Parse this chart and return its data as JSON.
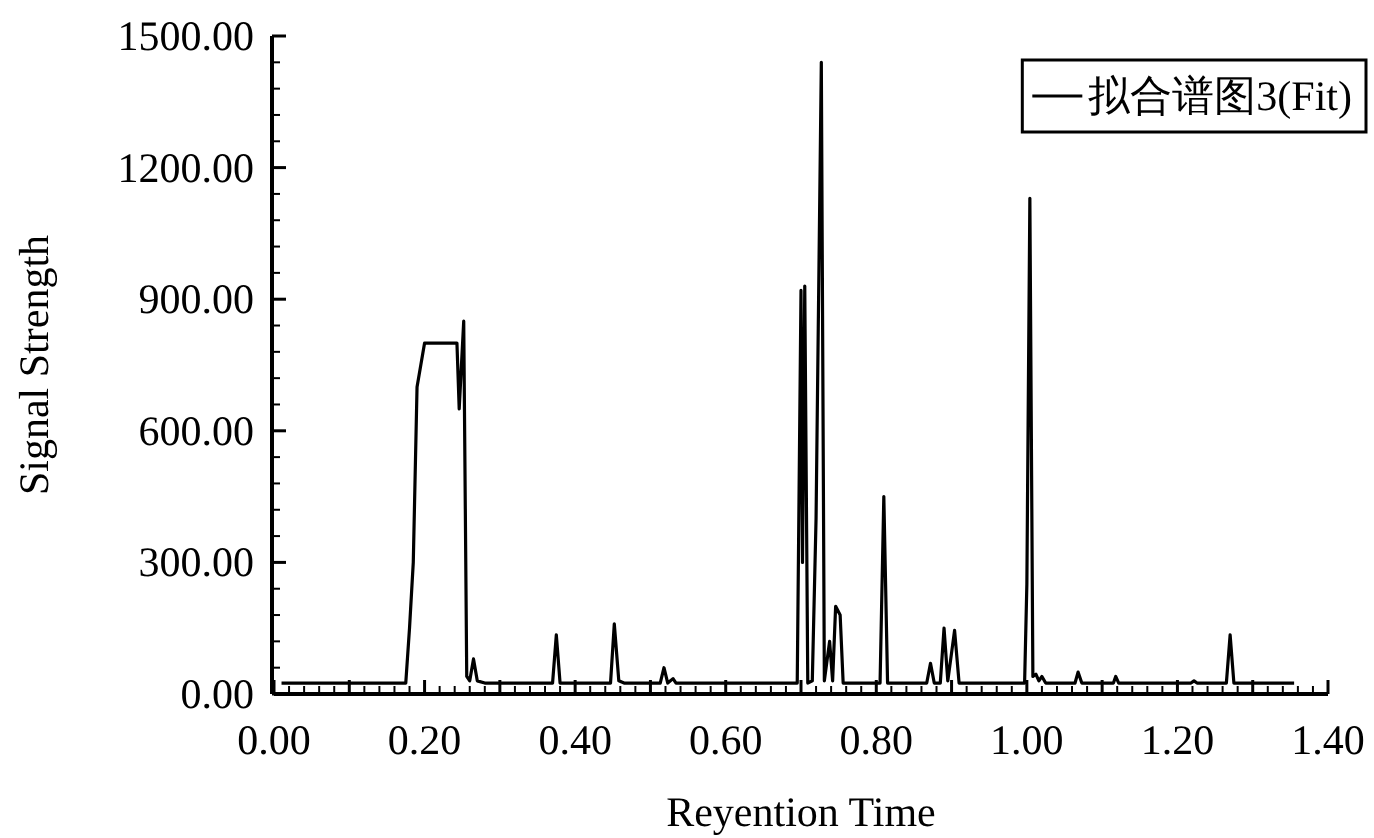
{
  "chart_data": {
    "type": "line",
    "xlabel": "Reyention Time",
    "ylabel": "Signal Strength",
    "xlim": [
      0,
      1.4
    ],
    "ylim": [
      0,
      1500
    ],
    "xticks": [
      {
        "value": 0,
        "label": "0.00"
      },
      {
        "value": 0.1,
        "label": null
      },
      {
        "value": 0.2,
        "label": "0.20"
      },
      {
        "value": 0.3,
        "label": null
      },
      {
        "value": 0.4,
        "label": "0.40"
      },
      {
        "value": 0.5,
        "label": null
      },
      {
        "value": 0.6,
        "label": "0.60"
      },
      {
        "value": 0.7,
        "label": null
      },
      {
        "value": 0.8,
        "label": "0.80"
      },
      {
        "value": 0.9,
        "label": null
      },
      {
        "value": 1.0,
        "label": "1.00"
      },
      {
        "value": 1.1,
        "label": null
      },
      {
        "value": 1.2,
        "label": "1.20"
      },
      {
        "value": 1.3,
        "label": null
      },
      {
        "value": 1.4,
        "label": "1.40"
      }
    ],
    "yticks": [
      {
        "value": 0,
        "label": "0.00"
      },
      {
        "value": 300,
        "label": "300.00"
      },
      {
        "value": 600,
        "label": "600.00"
      },
      {
        "value": 900,
        "label": "900.00"
      },
      {
        "value": 1200,
        "label": "1200.00"
      },
      {
        "value": 1500,
        "label": "1500.00"
      }
    ],
    "legend": "top right",
    "marker": "none",
    "line_style": "solid",
    "series": [
      {
        "name": "拟合谱图3(Fit)",
        "color": "#000000",
        "x": [
          0.01,
          0.175,
          0.18,
          0.185,
          0.19,
          0.2,
          0.243,
          0.246,
          0.252,
          0.256,
          0.26,
          0.265,
          0.27,
          0.28,
          0.37,
          0.375,
          0.38,
          0.447,
          0.452,
          0.458,
          0.465,
          0.513,
          0.518,
          0.523,
          0.53,
          0.534,
          0.538,
          0.695,
          0.7,
          0.702,
          0.705,
          0.709,
          0.715,
          0.72,
          0.727,
          0.731,
          0.738,
          0.742,
          0.746,
          0.752,
          0.756,
          0.805,
          0.81,
          0.815,
          0.867,
          0.872,
          0.877,
          0.885,
          0.89,
          0.895,
          0.904,
          0.91,
          0.997,
          1.0,
          1.004,
          1.008,
          1.012,
          1.016,
          1.02,
          1.025,
          1.064,
          1.068,
          1.073,
          1.115,
          1.118,
          1.122,
          1.218,
          1.222,
          1.226,
          1.265,
          1.27,
          1.275,
          1.355
        ],
        "values": [
          25,
          25,
          150,
          300,
          700,
          800,
          800,
          650,
          850,
          40,
          30,
          80,
          30,
          25,
          25,
          135,
          25,
          25,
          160,
          30,
          25,
          25,
          60,
          25,
          35,
          25,
          25,
          25,
          920,
          300,
          930,
          25,
          30,
          400,
          1440,
          30,
          120,
          30,
          200,
          180,
          25,
          25,
          450,
          25,
          25,
          70,
          25,
          25,
          150,
          30,
          145,
          25,
          25,
          250,
          1130,
          40,
          45,
          30,
          40,
          25,
          25,
          50,
          25,
          25,
          40,
          25,
          25,
          30,
          25,
          25,
          135,
          25,
          25
        ]
      }
    ]
  }
}
